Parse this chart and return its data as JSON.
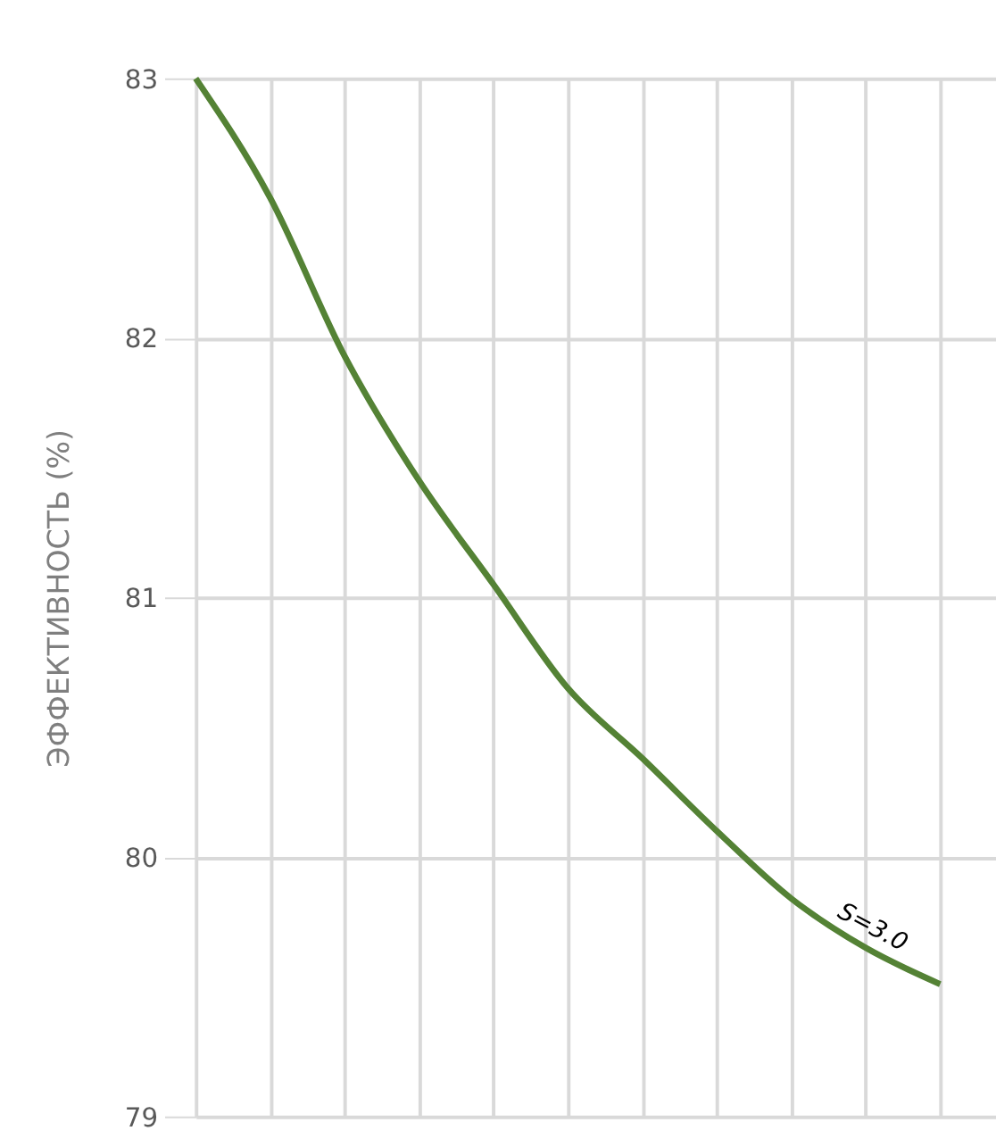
{
  "chart_data": {
    "type": "line",
    "ylabel": "ЭФФЕКТИВНОСТЬ (%)",
    "categories": [
      null,
      null,
      null,
      null,
      null,
      null,
      null,
      null,
      null,
      null,
      null
    ],
    "series": [
      {
        "color": "#548235",
        "values": [
          83.0,
          82.54,
          81.93,
          81.45,
          81.05,
          80.65,
          80.38,
          80.1,
          79.84,
          79.65,
          79.51
        ]
      }
    ],
    "ylim": [
      79,
      83
    ],
    "yticks": [
      79,
      80,
      81,
      82,
      83
    ],
    "grid": true,
    "tick_labels": "y",
    "marker": "none",
    "line_style": "solid",
    "annotations": [
      "S=3.0"
    ]
  }
}
